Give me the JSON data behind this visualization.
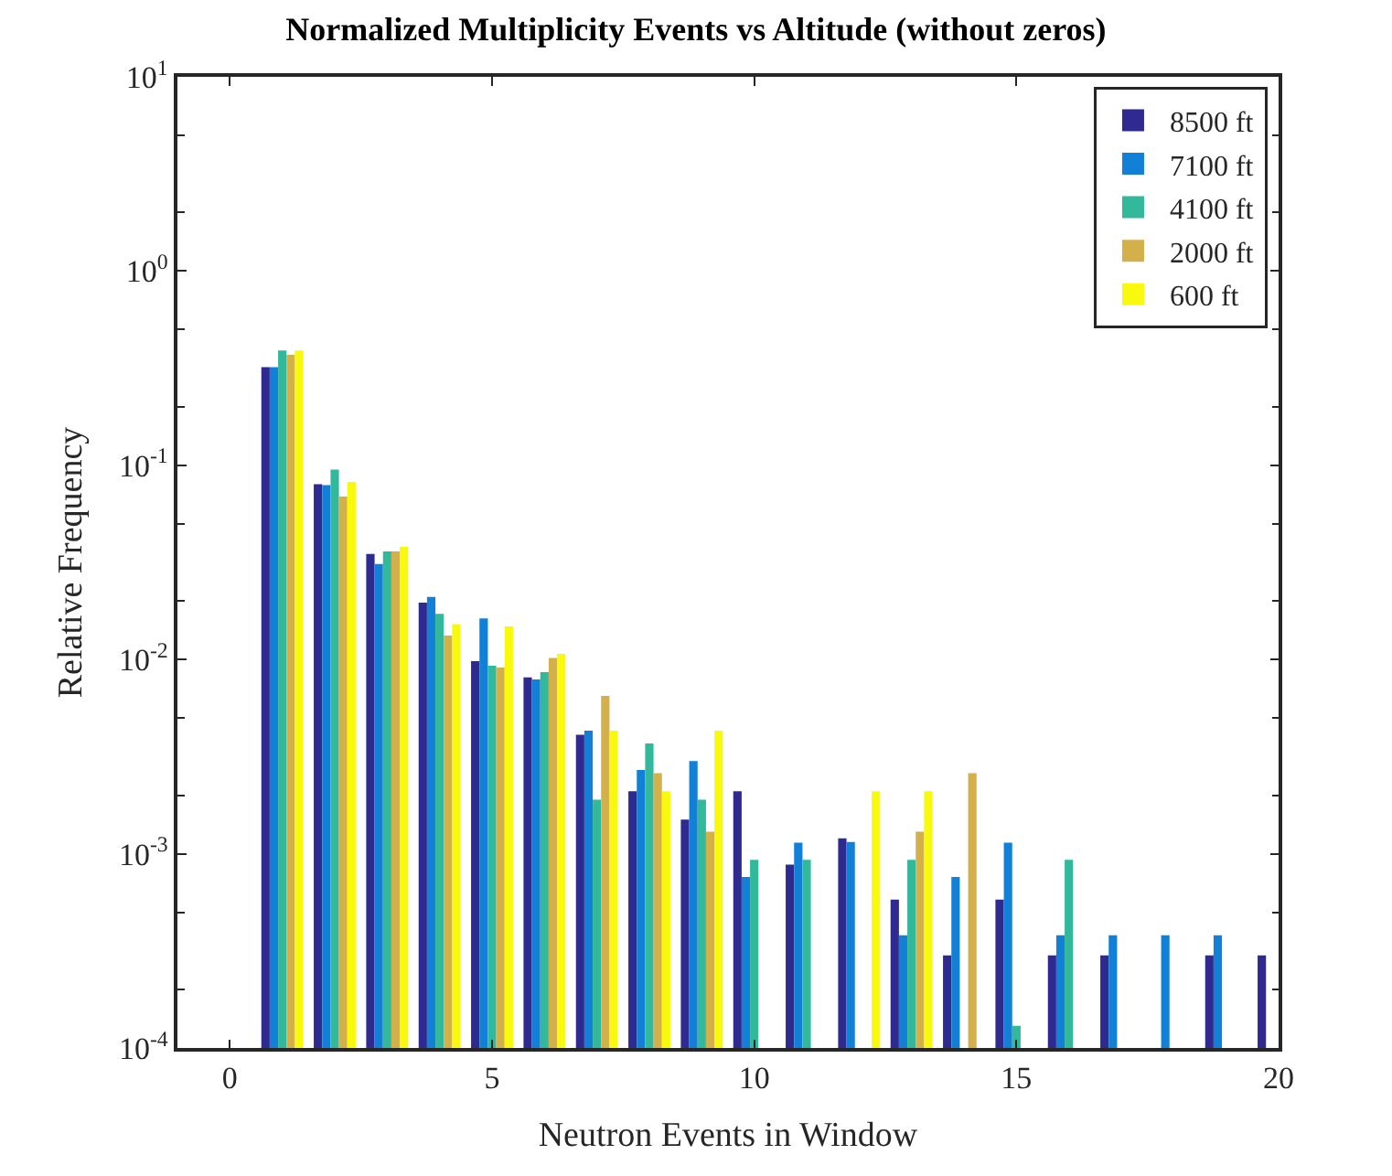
{
  "chart_data": {
    "type": "bar",
    "title": "Normalized Multiplicity Events vs Altitude (without zeros)",
    "xlabel": "Neutron Events in Window",
    "ylabel": "Relative Frequency",
    "x": [
      1,
      2,
      3,
      4,
      5,
      6,
      7,
      8,
      9,
      10,
      11,
      12,
      13,
      14,
      15,
      16,
      17,
      18,
      19,
      20
    ],
    "series": [
      {
        "name": "8500 ft",
        "color": "#2e2a8f",
        "values": [
          0.32,
          0.08,
          0.035,
          0.0196,
          0.0098,
          0.0081,
          0.0041,
          0.0021,
          0.0015,
          0.0021,
          0.00088,
          0.0012,
          0.00058,
          0.0003,
          0.00058,
          0.0003,
          0.0003,
          null,
          0.0003,
          0.0003
        ]
      },
      {
        "name": "7100 ft",
        "color": "#1380d8",
        "values": [
          0.32,
          0.079,
          0.031,
          0.021,
          0.0163,
          0.0079,
          0.0043,
          0.0027,
          0.003,
          0.00076,
          0.00114,
          0.00115,
          0.00038,
          0.00076,
          0.00114,
          0.00038,
          0.00038,
          0.00038,
          0.00038,
          null
        ]
      },
      {
        "name": "4100 ft",
        "color": "#32b89a",
        "values": [
          0.39,
          0.095,
          0.036,
          0.0172,
          0.0093,
          0.0086,
          0.0019,
          0.0037,
          0.0019,
          0.00093,
          0.00093,
          null,
          0.00093,
          null,
          0.00013,
          0.00093,
          null,
          null,
          null,
          null
        ]
      },
      {
        "name": "2000 ft",
        "color": "#d4b04a",
        "values": [
          0.37,
          0.069,
          0.036,
          0.0133,
          0.0091,
          0.0102,
          0.0065,
          0.0026,
          0.0013,
          null,
          null,
          null,
          0.0013,
          0.0026,
          null,
          null,
          null,
          null,
          null,
          null
        ]
      },
      {
        "name": "600 ft",
        "color": "#f9f90e",
        "values": [
          0.39,
          0.082,
          0.038,
          0.0152,
          0.0148,
          0.0107,
          0.0043,
          0.0021,
          0.0043,
          null,
          null,
          0.0021,
          0.0021,
          null,
          null,
          null,
          null,
          null,
          null,
          null
        ]
      }
    ],
    "log": "y",
    "xlim": [
      -1,
      20
    ],
    "xticks": [
      0,
      5,
      10,
      15,
      20
    ],
    "ylim": [
      0.0001,
      10
    ],
    "yticks": [
      {
        "value": 0.0001,
        "label": "10$^{-4}$"
      },
      {
        "value": 0.001,
        "label": "10$^{-3}$"
      },
      {
        "value": 0.01,
        "label": "10$^{-2}$"
      },
      {
        "value": 0.1,
        "label": "10$^{-1}$"
      },
      {
        "value": 1,
        "label": "10$^{0}$"
      },
      {
        "value": 10,
        "label": "10$^{1}$"
      }
    ],
    "legend": "top right"
  }
}
